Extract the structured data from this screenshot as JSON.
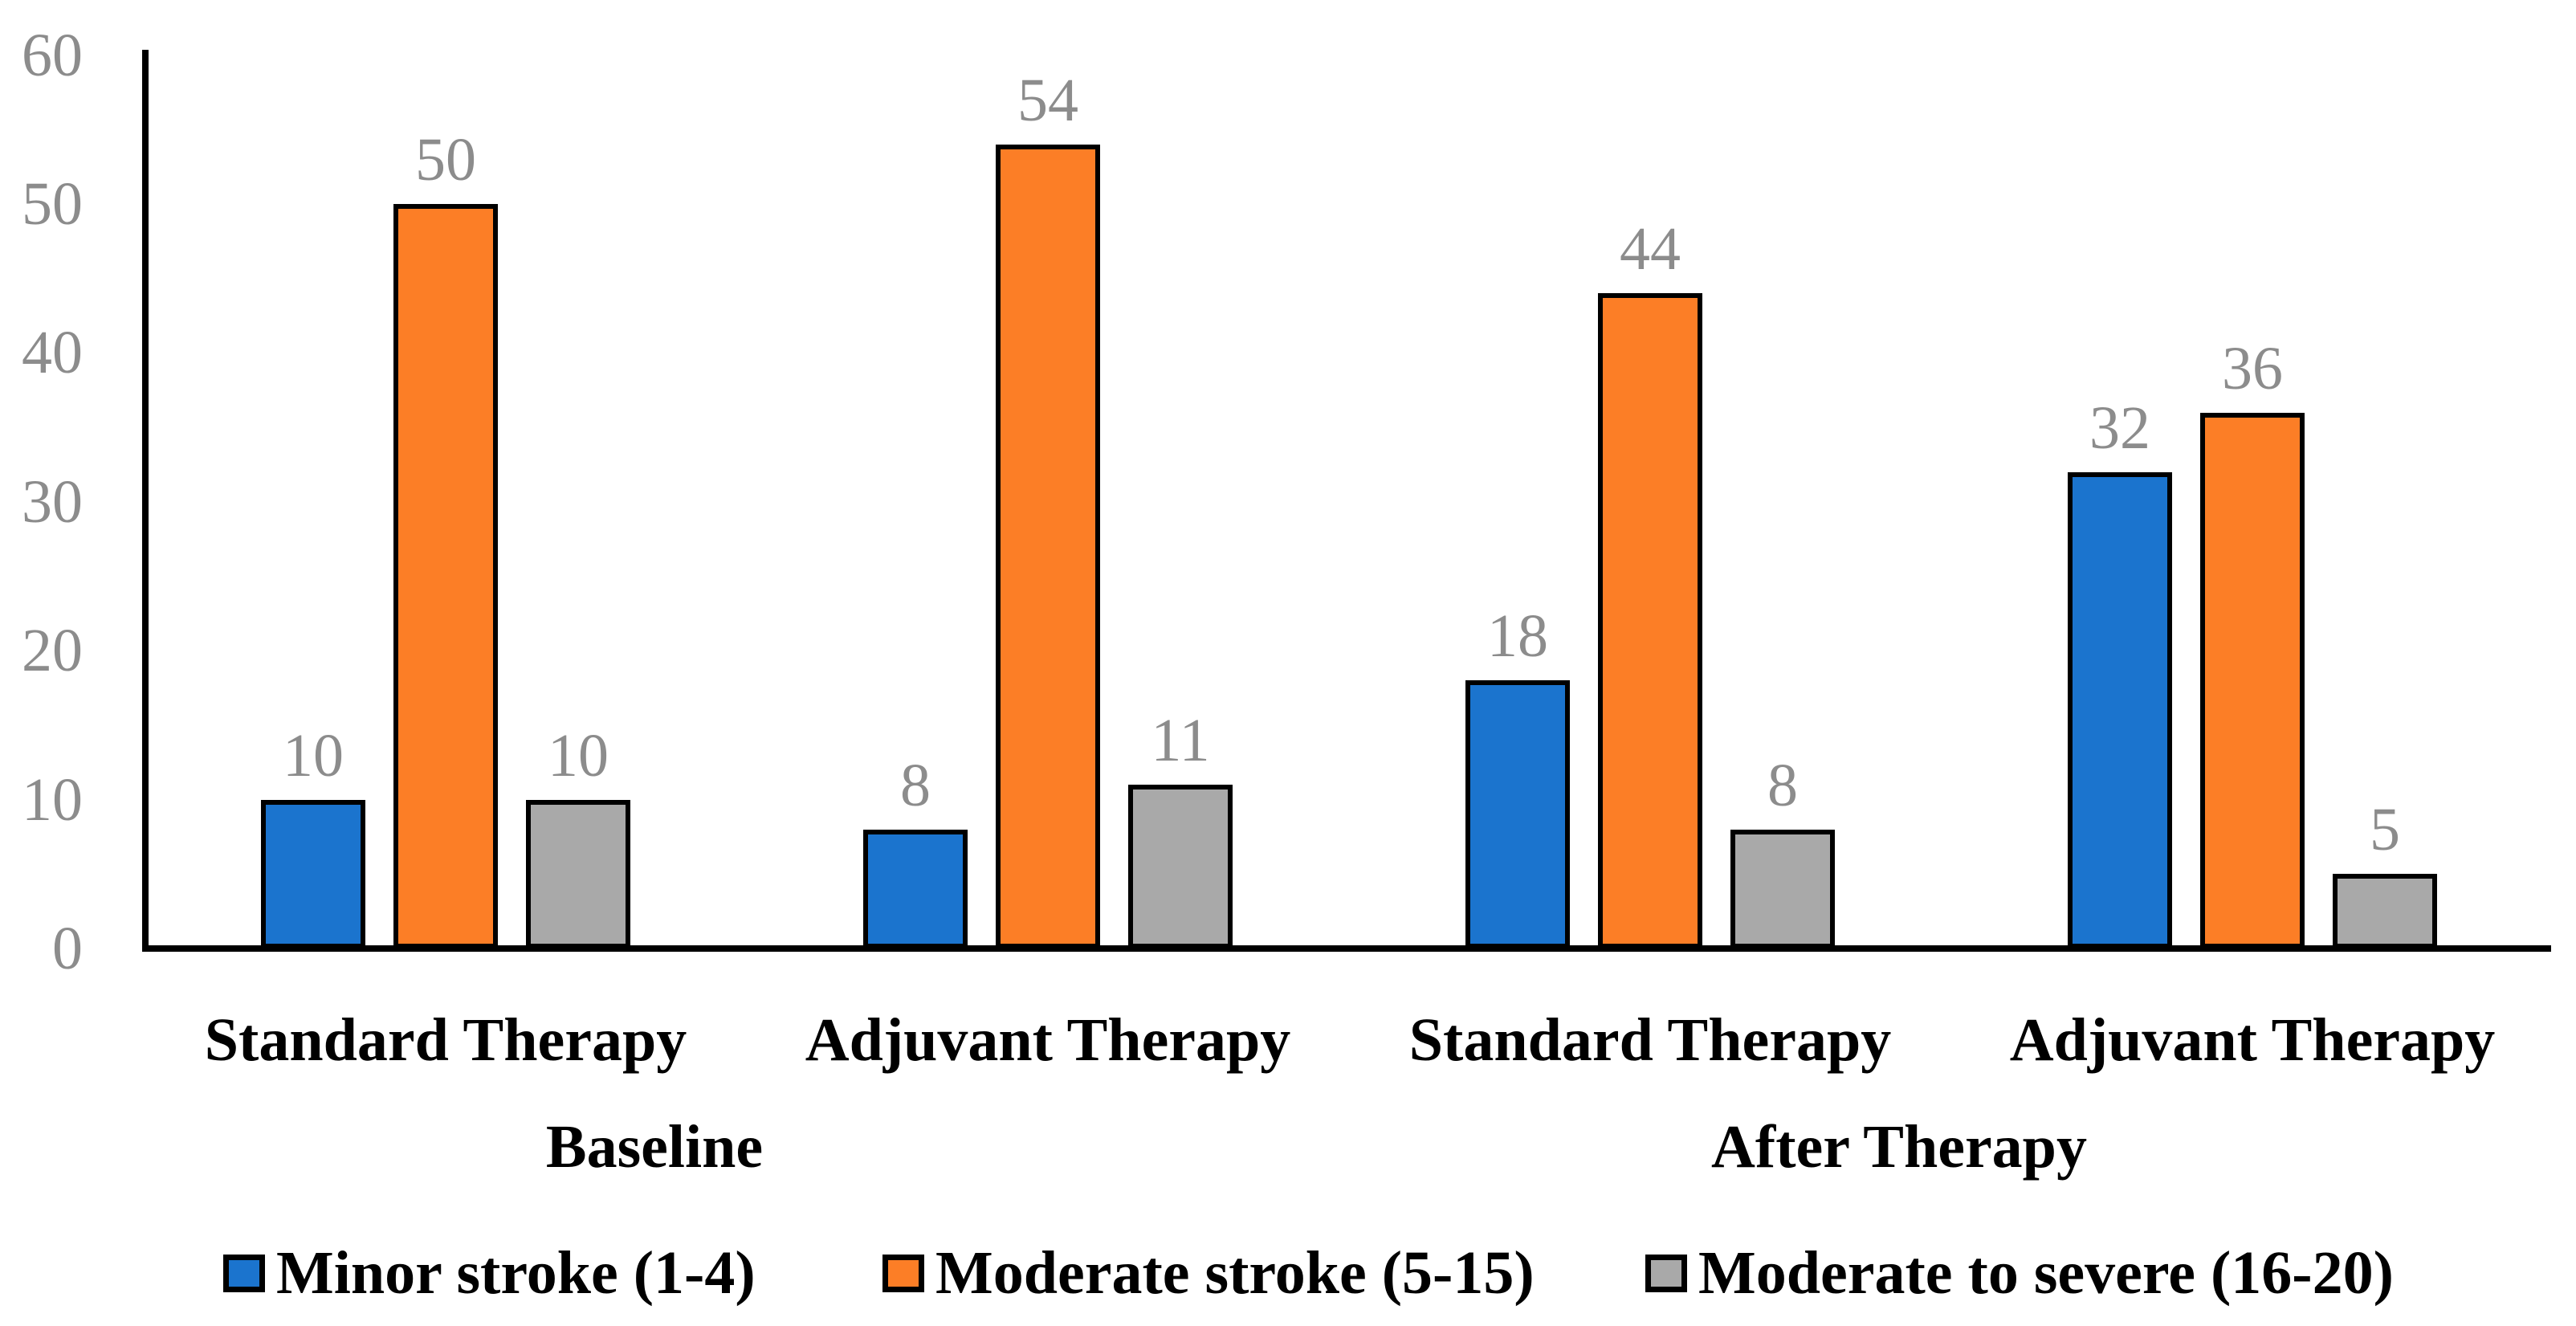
{
  "chart_data": {
    "type": "bar",
    "title": "",
    "xlabel": "",
    "ylabel": "",
    "y_axis": {
      "min": 0,
      "max": 60,
      "step": 10,
      "tick_labels": [
        "0",
        "10",
        "20",
        "30",
        "40",
        "50",
        "60"
      ]
    },
    "grid": false,
    "legend_position": "bottom",
    "data_labels_visible": true,
    "categories": [
      "Standard Therapy",
      "Adjuvant Therapy",
      "Standard Therapy",
      "Adjuvant Therapy"
    ],
    "category_groups": [
      {
        "label": "Baseline",
        "category_indexes": [
          0,
          1
        ]
      },
      {
        "label": "After Therapy",
        "category_indexes": [
          2,
          3
        ]
      }
    ],
    "series": [
      {
        "name": "Minor stroke (1-4)",
        "color": "#1B74CE",
        "values": [
          10,
          8,
          18,
          32
        ]
      },
      {
        "name": "Moderate stroke (5-15)",
        "color": "#FC7E26",
        "values": [
          50,
          54,
          44,
          36
        ]
      },
      {
        "name": "Moderate to severe (16-20)",
        "color": "#A9A9A9",
        "values": [
          10,
          11,
          8,
          5
        ]
      }
    ],
    "data_labels": [
      [
        "10",
        "8",
        "18",
        "32"
      ],
      [
        "50",
        "54",
        "44",
        "36"
      ],
      [
        "10",
        "11",
        "8",
        "5"
      ]
    ]
  },
  "colors": {
    "background": "#FFFFFF",
    "axis_line": "#000000",
    "bar_border": "#000000",
    "tick_label_text": "#8C8C8C",
    "data_label_text": "#8C8C8C",
    "category_label_text": "#000000",
    "legend_text": "#000000"
  }
}
